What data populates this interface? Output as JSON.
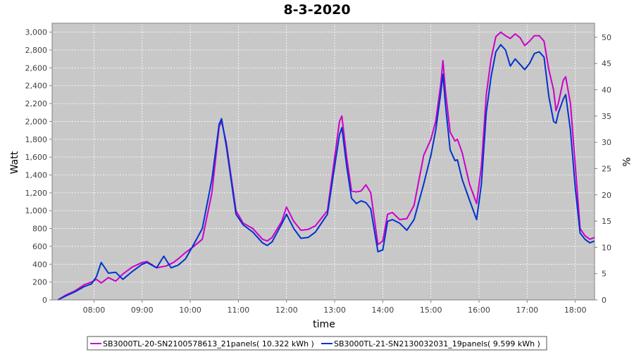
{
  "chart_data": {
    "type": "line",
    "title": "8-3-2020",
    "xlabel": "time",
    "ylabel": "Watt",
    "y2label": "%",
    "grid": true,
    "legend_position": "bottom",
    "xlim": [
      7.13,
      18.4
    ],
    "ylim": [
      0,
      3100
    ],
    "y2lim": [
      0,
      52.67
    ],
    "x_ticks": [
      {
        "value": 8,
        "label": "08:00"
      },
      {
        "value": 9,
        "label": "09:00"
      },
      {
        "value": 10,
        "label": "10:00"
      },
      {
        "value": 11,
        "label": "11:00"
      },
      {
        "value": 12,
        "label": "12:00"
      },
      {
        "value": 13,
        "label": "13:00"
      },
      {
        "value": 14,
        "label": "14:00"
      },
      {
        "value": 15,
        "label": "15:00"
      },
      {
        "value": 16,
        "label": "16:00"
      },
      {
        "value": 17,
        "label": "17:00"
      },
      {
        "value": 18,
        "label": "18:00"
      }
    ],
    "y_ticks": [
      {
        "value": 0,
        "label": "0"
      },
      {
        "value": 200,
        "label": "200"
      },
      {
        "value": 400,
        "label": "400"
      },
      {
        "value": 600,
        "label": "600"
      },
      {
        "value": 800,
        "label": "800"
      },
      {
        "value": 1000,
        "label": "1,000"
      },
      {
        "value": 1200,
        "label": "1,200"
      },
      {
        "value": 1400,
        "label": "1,400"
      },
      {
        "value": 1600,
        "label": "1,600"
      },
      {
        "value": 1800,
        "label": "1,800"
      },
      {
        "value": 2000,
        "label": "2,000"
      },
      {
        "value": 2200,
        "label": "2,200"
      },
      {
        "value": 2400,
        "label": "2,400"
      },
      {
        "value": 2600,
        "label": "2,600"
      },
      {
        "value": 2800,
        "label": "2,800"
      },
      {
        "value": 3000,
        "label": "3,000"
      }
    ],
    "y2_ticks": [
      {
        "value": 0,
        "label": "0"
      },
      {
        "value": 5,
        "label": "5"
      },
      {
        "value": 10,
        "label": "10"
      },
      {
        "value": 15,
        "label": "15"
      },
      {
        "value": 20,
        "label": "20"
      },
      {
        "value": 25,
        "label": "25"
      },
      {
        "value": 30,
        "label": "30"
      },
      {
        "value": 35,
        "label": "35"
      },
      {
        "value": 40,
        "label": "40"
      },
      {
        "value": 45,
        "label": "45"
      },
      {
        "value": 50,
        "label": "50"
      }
    ],
    "series": [
      {
        "name": "SB3000TL-20-SN2100578613_21panels( 10.322 kWh )",
        "color": "#cc00cc",
        "points": [
          [
            7.25,
            0
          ],
          [
            7.4,
            50
          ],
          [
            7.6,
            100
          ],
          [
            7.8,
            170
          ],
          [
            7.95,
            200
          ],
          [
            8.05,
            230
          ],
          [
            8.15,
            190
          ],
          [
            8.3,
            250
          ],
          [
            8.45,
            210
          ],
          [
            8.6,
            290
          ],
          [
            8.8,
            370
          ],
          [
            9.0,
            420
          ],
          [
            9.1,
            430
          ],
          [
            9.3,
            360
          ],
          [
            9.5,
            380
          ],
          [
            9.65,
            420
          ],
          [
            9.75,
            460
          ],
          [
            9.9,
            530
          ],
          [
            10.05,
            590
          ],
          [
            10.25,
            680
          ],
          [
            10.45,
            1200
          ],
          [
            10.6,
            1940
          ],
          [
            10.65,
            2000
          ],
          [
            10.75,
            1760
          ],
          [
            10.95,
            1000
          ],
          [
            11.1,
            860
          ],
          [
            11.3,
            800
          ],
          [
            11.5,
            680
          ],
          [
            11.6,
            660
          ],
          [
            11.7,
            700
          ],
          [
            11.9,
            880
          ],
          [
            12.0,
            1040
          ],
          [
            12.15,
            880
          ],
          [
            12.3,
            780
          ],
          [
            12.45,
            790
          ],
          [
            12.6,
            830
          ],
          [
            12.85,
            1000
          ],
          [
            13.0,
            1600
          ],
          [
            13.1,
            2000
          ],
          [
            13.15,
            2060
          ],
          [
            13.25,
            1600
          ],
          [
            13.35,
            1220
          ],
          [
            13.45,
            1210
          ],
          [
            13.55,
            1220
          ],
          [
            13.65,
            1290
          ],
          [
            13.75,
            1200
          ],
          [
            13.9,
            620
          ],
          [
            14.0,
            660
          ],
          [
            14.1,
            960
          ],
          [
            14.2,
            980
          ],
          [
            14.35,
            900
          ],
          [
            14.5,
            910
          ],
          [
            14.65,
            1060
          ],
          [
            14.85,
            1620
          ],
          [
            15.0,
            1800
          ],
          [
            15.1,
            2000
          ],
          [
            15.2,
            2400
          ],
          [
            15.25,
            2680
          ],
          [
            15.3,
            2350
          ],
          [
            15.4,
            1880
          ],
          [
            15.5,
            1780
          ],
          [
            15.55,
            1800
          ],
          [
            15.65,
            1650
          ],
          [
            15.8,
            1300
          ],
          [
            15.95,
            1080
          ],
          [
            16.05,
            1500
          ],
          [
            16.15,
            2300
          ],
          [
            16.25,
            2700
          ],
          [
            16.35,
            2950
          ],
          [
            16.45,
            3000
          ],
          [
            16.55,
            2960
          ],
          [
            16.65,
            2930
          ],
          [
            16.75,
            2980
          ],
          [
            16.85,
            2940
          ],
          [
            16.95,
            2850
          ],
          [
            17.05,
            2900
          ],
          [
            17.15,
            2960
          ],
          [
            17.25,
            2960
          ],
          [
            17.35,
            2900
          ],
          [
            17.45,
            2580
          ],
          [
            17.55,
            2350
          ],
          [
            17.6,
            2120
          ],
          [
            17.65,
            2210
          ],
          [
            17.75,
            2460
          ],
          [
            17.8,
            2500
          ],
          [
            17.9,
            2200
          ],
          [
            18.0,
            1500
          ],
          [
            18.1,
            800
          ],
          [
            18.2,
            720
          ],
          [
            18.3,
            680
          ],
          [
            18.4,
            700
          ]
        ]
      },
      {
        "name": "SB3000TL-21-SN2130032031_19panels( 9.599 kWh )",
        "color": "#0033cc",
        "points": [
          [
            7.25,
            0
          ],
          [
            7.4,
            40
          ],
          [
            7.6,
            90
          ],
          [
            7.8,
            150
          ],
          [
            7.95,
            180
          ],
          [
            8.05,
            260
          ],
          [
            8.15,
            420
          ],
          [
            8.3,
            300
          ],
          [
            8.45,
            310
          ],
          [
            8.6,
            230
          ],
          [
            8.8,
            320
          ],
          [
            9.0,
            400
          ],
          [
            9.1,
            420
          ],
          [
            9.3,
            360
          ],
          [
            9.45,
            490
          ],
          [
            9.6,
            360
          ],
          [
            9.75,
            390
          ],
          [
            9.9,
            460
          ],
          [
            10.05,
            600
          ],
          [
            10.25,
            800
          ],
          [
            10.45,
            1350
          ],
          [
            10.6,
            1970
          ],
          [
            10.65,
            2030
          ],
          [
            10.75,
            1720
          ],
          [
            10.95,
            960
          ],
          [
            11.1,
            840
          ],
          [
            11.3,
            760
          ],
          [
            11.5,
            640
          ],
          [
            11.6,
            610
          ],
          [
            11.7,
            650
          ],
          [
            11.9,
            850
          ],
          [
            12.0,
            960
          ],
          [
            12.15,
            800
          ],
          [
            12.3,
            690
          ],
          [
            12.45,
            700
          ],
          [
            12.6,
            760
          ],
          [
            12.85,
            960
          ],
          [
            13.0,
            1500
          ],
          [
            13.1,
            1850
          ],
          [
            13.15,
            1930
          ],
          [
            13.25,
            1500
          ],
          [
            13.35,
            1140
          ],
          [
            13.45,
            1080
          ],
          [
            13.55,
            1110
          ],
          [
            13.65,
            1090
          ],
          [
            13.75,
            1020
          ],
          [
            13.9,
            540
          ],
          [
            14.0,
            560
          ],
          [
            14.1,
            880
          ],
          [
            14.2,
            900
          ],
          [
            14.35,
            860
          ],
          [
            14.5,
            780
          ],
          [
            14.65,
            900
          ],
          [
            14.85,
            1300
          ],
          [
            15.0,
            1620
          ],
          [
            15.1,
            1900
          ],
          [
            15.2,
            2300
          ],
          [
            15.25,
            2530
          ],
          [
            15.3,
            2200
          ],
          [
            15.4,
            1680
          ],
          [
            15.5,
            1560
          ],
          [
            15.55,
            1570
          ],
          [
            15.65,
            1350
          ],
          [
            15.8,
            1120
          ],
          [
            15.95,
            900
          ],
          [
            16.05,
            1300
          ],
          [
            16.15,
            2100
          ],
          [
            16.25,
            2500
          ],
          [
            16.35,
            2780
          ],
          [
            16.45,
            2860
          ],
          [
            16.55,
            2800
          ],
          [
            16.65,
            2620
          ],
          [
            16.75,
            2700
          ],
          [
            16.85,
            2640
          ],
          [
            16.95,
            2580
          ],
          [
            17.05,
            2650
          ],
          [
            17.15,
            2760
          ],
          [
            17.25,
            2780
          ],
          [
            17.35,
            2720
          ],
          [
            17.45,
            2280
          ],
          [
            17.55,
            2000
          ],
          [
            17.6,
            1980
          ],
          [
            17.65,
            2100
          ],
          [
            17.75,
            2250
          ],
          [
            17.8,
            2300
          ],
          [
            17.9,
            1900
          ],
          [
            18.0,
            1250
          ],
          [
            18.1,
            750
          ],
          [
            18.2,
            680
          ],
          [
            18.3,
            640
          ],
          [
            18.4,
            660
          ]
        ]
      }
    ]
  }
}
